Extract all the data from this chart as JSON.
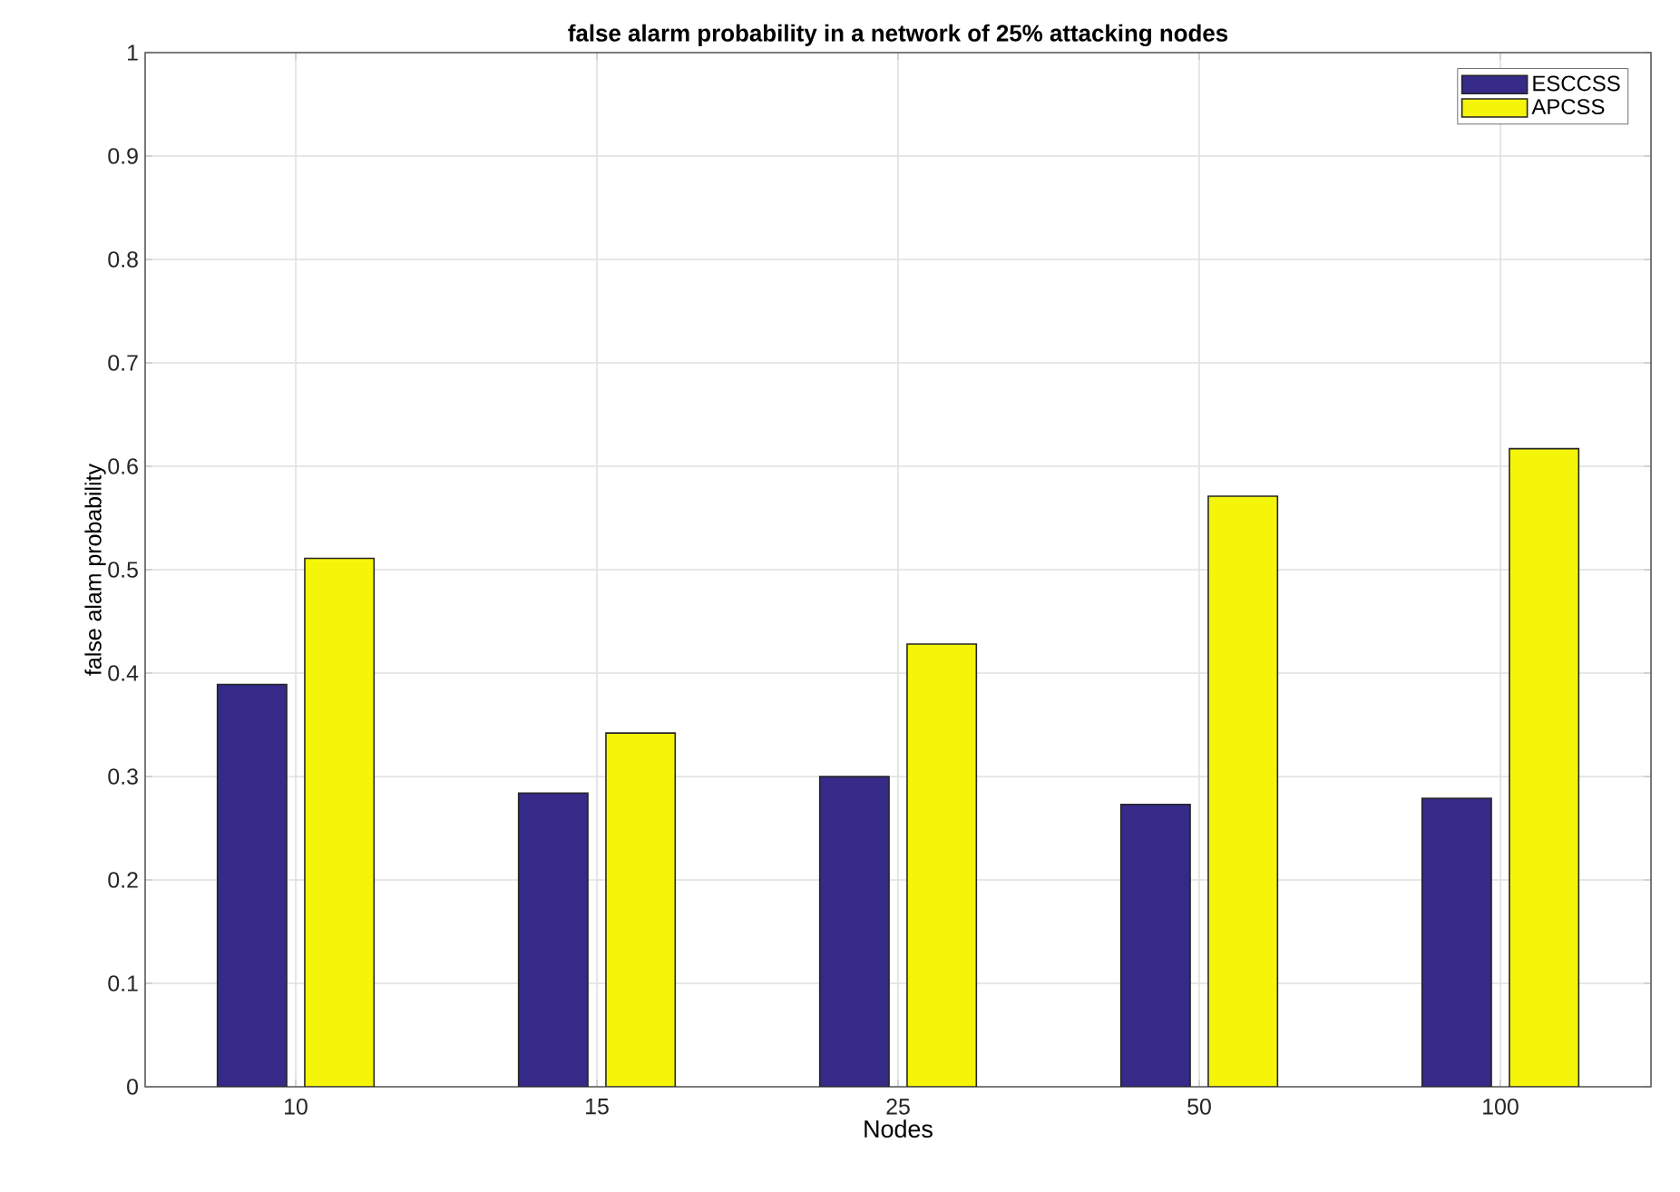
{
  "chart_data": {
    "type": "bar",
    "title": "**false alarm probability in a network of 25% attacking nodes**",
    "xlabel": "Nodes",
    "ylabel": "false alam probability",
    "categories": [
      "10",
      "15",
      "25",
      "50",
      "100"
    ],
    "series": [
      {
        "name": "ESCCSS",
        "color": "#352a87",
        "values": [
          0.389,
          0.284,
          0.3,
          0.273,
          0.279
        ]
      },
      {
        "name": "APCSS",
        "color": "#f5f50a",
        "values": [
          0.511,
          0.342,
          0.428,
          0.571,
          0.617
        ]
      }
    ],
    "ylim": [
      0,
      1
    ],
    "yticks": [
      0,
      0.1,
      0.2,
      0.3,
      0.4,
      0.5,
      0.6,
      0.7,
      0.8,
      0.9,
      1
    ],
    "grid": true,
    "legend": "top right"
  }
}
